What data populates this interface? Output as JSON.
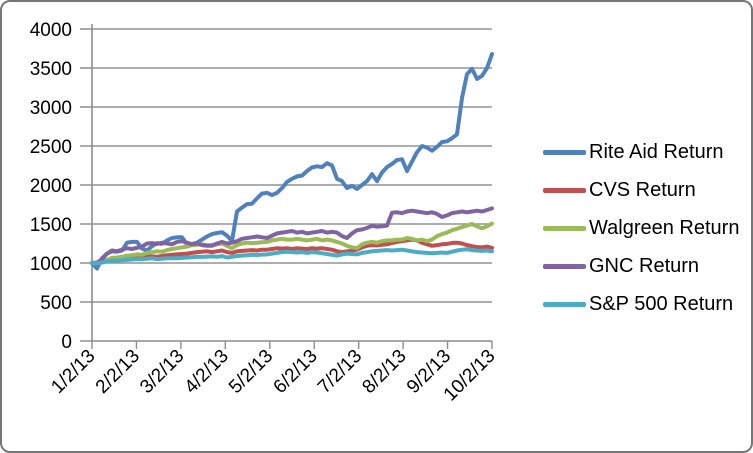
{
  "window": {
    "background": "#ffffff",
    "border_color": "#767676"
  },
  "chart_data": {
    "type": "line",
    "title": "",
    "xlabel": "",
    "ylabel": "",
    "grid": true,
    "legend_position": "right",
    "y_axis": {
      "min": 0,
      "max": 4000,
      "step": 500,
      "tick_labels": [
        "0",
        "500",
        "1000",
        "1500",
        "2000",
        "2500",
        "3000",
        "3500",
        "4000"
      ]
    },
    "x_axis": {
      "tick_labels": [
        "1/2/13",
        "2/2/13",
        "3/2/13",
        "4/2/13",
        "5/2/13",
        "6/2/13",
        "7/2/13",
        "8/2/13",
        "9/2/13",
        "10/2/13"
      ],
      "label_rotation_deg": -45,
      "note_visible_range": "daily series sampled uniformly from 1/2/13 to 10/2/13"
    },
    "colors": {
      "gridline": "#949494",
      "axis": "#8c8c8c",
      "text": "#000000"
    },
    "series": [
      {
        "name": "Rite Aid Return",
        "color": "#4F81BD",
        "values": [
          1000,
          930,
          1060,
          1120,
          1150,
          1145,
          1160,
          1260,
          1270,
          1270,
          1185,
          1160,
          1215,
          1255,
          1245,
          1290,
          1320,
          1330,
          1330,
          1240,
          1245,
          1260,
          1300,
          1340,
          1370,
          1385,
          1395,
          1350,
          1285,
          1660,
          1710,
          1755,
          1760,
          1830,
          1890,
          1900,
          1870,
          1900,
          1960,
          2040,
          2080,
          2110,
          2120,
          2180,
          2225,
          2240,
          2230,
          2280,
          2250,
          2080,
          2050,
          1960,
          1990,
          1950,
          2000,
          2050,
          2140,
          2050,
          2160,
          2230,
          2270,
          2320,
          2330,
          2180,
          2300,
          2420,
          2500,
          2480,
          2440,
          2490,
          2550,
          2560,
          2600,
          2650,
          3115,
          3420,
          3490,
          3360,
          3400,
          3500,
          3680
        ]
      },
      {
        "name": "CVS Return",
        "color": "#C0504D",
        "values": [
          1000,
          1005,
          1020,
          1030,
          1040,
          1035,
          1050,
          1055,
          1060,
          1065,
          1070,
          1080,
          1085,
          1080,
          1090,
          1100,
          1105,
          1110,
          1115,
          1120,
          1130,
          1140,
          1145,
          1150,
          1140,
          1150,
          1160,
          1140,
          1130,
          1150,
          1155,
          1160,
          1165,
          1160,
          1170,
          1170,
          1180,
          1190,
          1185,
          1190,
          1180,
          1190,
          1185,
          1180,
          1190,
          1185,
          1190,
          1180,
          1170,
          1150,
          1140,
          1150,
          1160,
          1170,
          1200,
          1220,
          1230,
          1225,
          1235,
          1240,
          1255,
          1270,
          1280,
          1290,
          1300,
          1290,
          1260,
          1240,
          1220,
          1230,
          1240,
          1245,
          1258,
          1260,
          1250,
          1230,
          1215,
          1205,
          1200,
          1210,
          1195
        ]
      },
      {
        "name": "Walgreen Return",
        "color": "#9BBB59",
        "values": [
          1000,
          995,
          1010,
          1040,
          1065,
          1070,
          1080,
          1095,
          1100,
          1110,
          1105,
          1130,
          1140,
          1150,
          1145,
          1165,
          1180,
          1190,
          1200,
          1210,
          1230,
          1235,
          1240,
          1230,
          1230,
          1240,
          1250,
          1220,
          1190,
          1230,
          1250,
          1260,
          1255,
          1260,
          1265,
          1270,
          1290,
          1300,
          1310,
          1300,
          1300,
          1310,
          1300,
          1290,
          1300,
          1310,
          1290,
          1300,
          1290,
          1270,
          1250,
          1220,
          1200,
          1190,
          1240,
          1260,
          1270,
          1260,
          1280,
          1290,
          1290,
          1300,
          1300,
          1320,
          1310,
          1290,
          1300,
          1280,
          1300,
          1345,
          1370,
          1390,
          1420,
          1440,
          1460,
          1480,
          1500,
          1470,
          1445,
          1470,
          1505
        ]
      },
      {
        "name": "GNC Return",
        "color": "#8064A2",
        "values": [
          1000,
          1005,
          1050,
          1120,
          1160,
          1150,
          1170,
          1190,
          1180,
          1195,
          1210,
          1250,
          1255,
          1245,
          1260,
          1250,
          1240,
          1270,
          1280,
          1260,
          1240,
          1250,
          1230,
          1220,
          1220,
          1250,
          1270,
          1250,
          1260,
          1280,
          1310,
          1320,
          1330,
          1340,
          1330,
          1320,
          1350,
          1380,
          1390,
          1400,
          1410,
          1390,
          1400,
          1380,
          1390,
          1400,
          1410,
          1390,
          1400,
          1390,
          1345,
          1320,
          1380,
          1420,
          1430,
          1450,
          1475,
          1465,
          1470,
          1480,
          1645,
          1650,
          1640,
          1660,
          1670,
          1660,
          1650,
          1640,
          1650,
          1630,
          1590,
          1610,
          1640,
          1650,
          1660,
          1650,
          1660,
          1670,
          1660,
          1680,
          1700
        ]
      },
      {
        "name": "S&P 500 Return",
        "color": "#4BACC6",
        "values": [
          1000,
          998,
          1005,
          1020,
          1030,
          1028,
          1035,
          1040,
          1045,
          1050,
          1048,
          1055,
          1060,
          1050,
          1055,
          1060,
          1062,
          1060,
          1065,
          1070,
          1075,
          1080,
          1078,
          1082,
          1085,
          1080,
          1088,
          1070,
          1080,
          1090,
          1095,
          1100,
          1105,
          1102,
          1108,
          1110,
          1120,
          1130,
          1140,
          1145,
          1140,
          1135,
          1140,
          1130,
          1140,
          1135,
          1125,
          1115,
          1105,
          1095,
          1110,
          1120,
          1115,
          1110,
          1130,
          1140,
          1150,
          1155,
          1160,
          1165,
          1160,
          1165,
          1170,
          1160,
          1150,
          1140,
          1135,
          1130,
          1125,
          1130,
          1135,
          1130,
          1145,
          1160,
          1170,
          1175,
          1165,
          1160,
          1155,
          1160,
          1150
        ]
      }
    ]
  }
}
